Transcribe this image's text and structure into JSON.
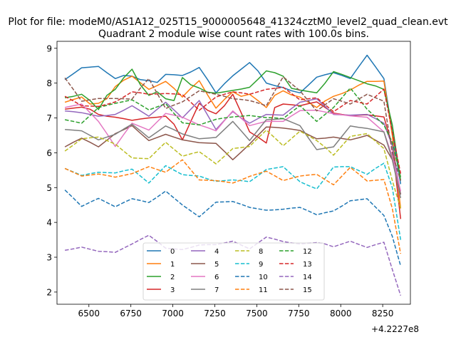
{
  "suptitle": "Plot for file: modeM0/AS1A12_025T15_9000005648_41324cztM0_level2_quad_clean.evt",
  "chart_data": {
    "type": "line",
    "title": "Quadrant 2 module wise count rates with 100.0s bins.",
    "xlabel": "",
    "ylabel": "",
    "x_offset_label": "+4.2227e8",
    "xlim": [
      6310,
      8415
    ],
    "ylim": [
      1.65,
      9.2
    ],
    "xticks": [
      6500,
      6750,
      7000,
      7250,
      7500,
      7750,
      8000,
      8250
    ],
    "xtick_labels": [
      "6500",
      "6750",
      "7000",
      "7250",
      "7500",
      "7750",
      "8000",
      "8250"
    ],
    "yticks": [
      2,
      3,
      4,
      5,
      6,
      7,
      8,
      9
    ],
    "ytick_labels": [
      "2",
      "3",
      "4",
      "5",
      "6",
      "7",
      "8",
      "9"
    ],
    "legend_position": "lower-center",
    "legend_columns": 4,
    "x": [
      6357,
      6407,
      6457,
      6507,
      6557,
      6607,
      6657,
      6707,
      6757,
      6807,
      6857,
      6907,
      6957,
      7007,
      7057,
      7107,
      7157,
      7207,
      7257,
      7307,
      7357,
      7407,
      7457,
      7507,
      7557,
      7607,
      7657,
      7707,
      7757,
      7807,
      7857,
      7907,
      7957,
      8007,
      8057,
      8107,
      8157,
      8207,
      8257,
      8307,
      8357
    ],
    "series": [
      {
        "name": "0",
        "color": "#1f77b4",
        "style": "solid",
        "values": [
          8.1,
          8.27,
          8.44,
          8.46,
          8.48,
          8.3,
          8.13,
          8.22,
          8.2,
          8.1,
          8.07,
          8.02,
          8.25,
          8.24,
          8.22,
          8.32,
          8.45,
          8.1,
          7.72,
          7.98,
          8.21,
          8.4,
          8.59,
          8.35,
          8.0,
          7.93,
          7.87,
          7.78,
          7.72,
          7.94,
          8.17,
          8.24,
          8.3,
          8.22,
          8.13,
          8.47,
          8.8,
          8.47,
          8.13,
          6.6,
          5.1
        ]
      },
      {
        "name": "1",
        "color": "#ff7f0e",
        "style": "solid",
        "values": [
          7.45,
          7.53,
          7.6,
          7.4,
          7.42,
          7.55,
          7.9,
          8.08,
          8.2,
          8.01,
          7.82,
          7.93,
          8.05,
          7.85,
          7.6,
          7.85,
          8.07,
          7.66,
          7.28,
          7.53,
          7.75,
          7.62,
          7.68,
          7.5,
          7.3,
          7.65,
          7.78,
          7.66,
          7.6,
          7.45,
          7.3,
          7.49,
          7.62,
          7.7,
          7.8,
          7.94,
          8.05,
          8.05,
          8.06,
          6.5,
          4.4
        ]
      },
      {
        "name": "2",
        "color": "#2ca02c",
        "style": "solid",
        "values": [
          7.58,
          7.62,
          7.68,
          7.5,
          7.24,
          7.65,
          7.82,
          8.15,
          8.4,
          7.95,
          7.65,
          7.75,
          7.55,
          7.5,
          8.16,
          7.95,
          7.86,
          7.74,
          7.71,
          7.75,
          7.79,
          7.83,
          7.88,
          8.11,
          8.35,
          8.3,
          8.2,
          7.85,
          7.8,
          7.76,
          7.72,
          8.0,
          8.33,
          8.25,
          8.16,
          8.07,
          7.98,
          7.92,
          7.82,
          6.8,
          5.2
        ]
      },
      {
        "name": "3",
        "color": "#d62728",
        "style": "solid",
        "values": [
          7.25,
          7.28,
          7.31,
          7.25,
          7.1,
          7.05,
          7.02,
          6.98,
          6.93,
          6.97,
          7.0,
          7.02,
          7.05,
          6.82,
          6.37,
          6.9,
          7.42,
          7.22,
          7.12,
          7.35,
          7.68,
          7.15,
          6.6,
          6.45,
          6.28,
          7.3,
          7.4,
          7.38,
          7.35,
          7.41,
          7.46,
          7.3,
          7.14,
          7.1,
          7.07,
          7.08,
          7.09,
          7.06,
          7.03,
          6.2,
          4.1
        ]
      },
      {
        "name": "4",
        "color": "#9467bd",
        "style": "solid",
        "values": [
          7.2,
          7.18,
          7.15,
          7.1,
          7.05,
          7.07,
          7.1,
          7.22,
          7.35,
          7.2,
          7.05,
          7.25,
          7.45,
          7.23,
          7.0,
          7.25,
          7.5,
          7.08,
          6.67,
          6.93,
          7.18,
          7.0,
          6.85,
          6.98,
          7.1,
          7.09,
          7.08,
          7.27,
          7.45,
          7.5,
          7.55,
          7.33,
          7.1,
          7.09,
          7.08,
          7.09,
          7.1,
          6.98,
          6.85,
          6.2,
          4.8
        ]
      },
      {
        "name": "5",
        "color": "#8c564b",
        "style": "solid",
        "values": [
          6.17,
          6.3,
          6.42,
          6.3,
          6.17,
          6.36,
          6.55,
          6.66,
          6.78,
          6.56,
          6.35,
          6.44,
          6.53,
          6.45,
          6.37,
          6.33,
          6.29,
          6.28,
          6.27,
          6.04,
          5.8,
          6.02,
          6.25,
          6.5,
          6.74,
          6.73,
          6.71,
          6.68,
          6.64,
          6.52,
          6.4,
          6.42,
          6.45,
          6.41,
          6.37,
          6.43,
          6.5,
          6.36,
          6.22,
          5.8,
          4.8
        ]
      },
      {
        "name": "6",
        "color": "#e377c2",
        "style": "solid",
        "values": [
          7.3,
          7.35,
          7.4,
          7.15,
          6.9,
          6.55,
          6.18,
          6.52,
          6.85,
          6.75,
          6.65,
          6.89,
          7.13,
          7.08,
          7.02,
          6.91,
          6.8,
          6.72,
          6.63,
          6.92,
          7.2,
          6.99,
          6.78,
          6.84,
          6.9,
          6.9,
          6.9,
          7.06,
          7.21,
          7.22,
          7.22,
          7.17,
          7.12,
          7.09,
          7.06,
          7.04,
          7.02,
          6.81,
          6.6,
          5.9,
          4.9
        ]
      },
      {
        "name": "7",
        "color": "#7f7f7f",
        "style": "solid",
        "values": [
          6.67,
          6.65,
          6.63,
          6.5,
          6.37,
          6.45,
          6.53,
          6.68,
          6.82,
          6.63,
          6.43,
          6.6,
          6.77,
          6.66,
          6.54,
          6.47,
          6.4,
          6.42,
          6.44,
          6.67,
          6.9,
          6.63,
          6.35,
          6.65,
          6.95,
          6.96,
          6.98,
          6.88,
          6.78,
          6.43,
          6.09,
          6.13,
          6.17,
          6.47,
          6.77,
          6.73,
          6.7,
          6.65,
          6.6,
          5.8,
          4.7
        ]
      },
      {
        "name": "8",
        "color": "#bcbd22",
        "style": "dashed",
        "values": [
          6.05,
          6.22,
          6.4,
          6.43,
          6.45,
          6.35,
          6.25,
          6.05,
          5.85,
          5.84,
          5.83,
          6.07,
          6.3,
          6.1,
          5.9,
          5.97,
          6.03,
          5.86,
          5.68,
          5.9,
          6.12,
          6.15,
          6.18,
          6.42,
          6.65,
          6.43,
          6.2,
          6.41,
          6.62,
          6.49,
          6.35,
          6.16,
          5.93,
          6.2,
          6.47,
          6.51,
          6.55,
          6.33,
          6.12,
          5.2,
          4.4
        ]
      },
      {
        "name": "9",
        "color": "#17becf",
        "style": "dashed",
        "values": [
          5.55,
          5.45,
          5.35,
          5.4,
          5.44,
          5.43,
          5.42,
          5.48,
          5.53,
          5.33,
          5.13,
          5.38,
          5.63,
          5.5,
          5.37,
          5.35,
          5.33,
          5.25,
          5.18,
          5.2,
          5.22,
          5.2,
          5.17,
          5.34,
          5.52,
          5.56,
          5.6,
          5.38,
          5.17,
          5.06,
          4.96,
          5.27,
          5.59,
          5.6,
          5.6,
          5.49,
          5.38,
          5.55,
          5.7,
          5.0,
          3.5
        ]
      },
      {
        "name": "10",
        "color": "#1f77b4",
        "style": "dashed",
        "values": [
          4.93,
          4.7,
          4.46,
          4.58,
          4.69,
          4.57,
          4.45,
          4.57,
          4.68,
          4.63,
          4.57,
          4.73,
          4.9,
          4.7,
          4.5,
          4.33,
          4.16,
          4.37,
          4.58,
          4.59,
          4.6,
          4.52,
          4.43,
          4.39,
          4.35,
          4.36,
          4.38,
          4.41,
          4.43,
          4.33,
          4.22,
          4.28,
          4.33,
          4.47,
          4.62,
          4.65,
          4.68,
          4.44,
          4.2,
          3.6,
          2.75
        ]
      },
      {
        "name": "11",
        "color": "#ff7f0e",
        "style": "dashed",
        "values": [
          5.55,
          5.44,
          5.33,
          5.36,
          5.39,
          5.35,
          5.3,
          5.35,
          5.4,
          5.5,
          5.6,
          5.52,
          5.44,
          5.62,
          5.8,
          5.51,
          5.22,
          5.21,
          5.2,
          5.17,
          5.13,
          5.22,
          5.32,
          5.4,
          5.47,
          5.34,
          5.2,
          5.27,
          5.33,
          5.36,
          5.38,
          5.23,
          5.08,
          5.33,
          5.58,
          5.39,
          5.19,
          5.21,
          5.23,
          4.4,
          3.1
        ]
      },
      {
        "name": "12",
        "color": "#2ca02c",
        "style": "dashed",
        "values": [
          6.95,
          6.9,
          6.85,
          7.07,
          7.3,
          7.36,
          7.42,
          7.47,
          7.52,
          7.38,
          7.23,
          7.32,
          7.41,
          7.13,
          6.86,
          6.83,
          6.8,
          6.88,
          6.96,
          7.0,
          7.03,
          7.05,
          7.07,
          7.04,
          7.01,
          7.0,
          6.98,
          7.17,
          7.35,
          7.13,
          6.9,
          7.1,
          7.3,
          7.58,
          7.86,
          7.56,
          7.25,
          7.03,
          6.8,
          6.3,
          5.3
        ]
      },
      {
        "name": "13",
        "color": "#d62728",
        "style": "dashed",
        "values": [
          7.62,
          7.49,
          7.35,
          7.34,
          7.33,
          7.39,
          7.46,
          7.6,
          7.75,
          7.72,
          7.68,
          7.69,
          7.7,
          7.69,
          7.67,
          7.45,
          7.22,
          7.41,
          7.6,
          7.68,
          7.75,
          7.72,
          7.68,
          7.75,
          7.82,
          7.85,
          7.88,
          7.7,
          7.52,
          7.55,
          7.58,
          7.38,
          7.18,
          7.34,
          7.5,
          7.45,
          7.4,
          7.61,
          7.83,
          6.6,
          5.4
        ]
      },
      {
        "name": "14",
        "color": "#9467bd",
        "style": "dashed",
        "values": [
          3.2,
          3.24,
          3.29,
          3.23,
          3.17,
          3.16,
          3.14,
          3.26,
          3.38,
          3.51,
          3.63,
          3.45,
          3.26,
          3.24,
          3.22,
          3.28,
          3.35,
          3.36,
          3.36,
          3.41,
          3.46,
          3.35,
          3.24,
          3.41,
          3.58,
          3.52,
          3.45,
          3.41,
          3.38,
          3.4,
          3.42,
          3.38,
          3.3,
          3.38,
          3.46,
          3.37,
          3.28,
          3.36,
          3.43,
          2.65,
          1.9
        ]
      },
      {
        "name": "15",
        "color": "#8c564b",
        "style": "dashed",
        "values": [
          8.15,
          7.82,
          7.48,
          7.52,
          7.56,
          7.56,
          7.56,
          7.55,
          7.54,
          7.86,
          8.13,
          7.7,
          7.27,
          7.37,
          7.46,
          7.62,
          7.78,
          7.73,
          7.68,
          7.62,
          7.55,
          7.53,
          7.5,
          7.43,
          7.35,
          7.77,
          8.18,
          7.98,
          7.78,
          7.49,
          7.2,
          7.38,
          7.55,
          7.48,
          7.4,
          7.54,
          7.68,
          7.58,
          7.48,
          6.0,
          5.2
        ]
      }
    ]
  }
}
